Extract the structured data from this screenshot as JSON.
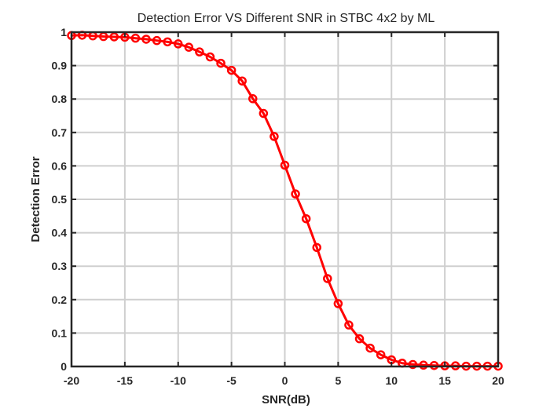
{
  "chart_data": {
    "type": "line",
    "title": "Detection Error VS Different SNR in STBC 4x2 by ML",
    "xlabel": "SNR(dB)",
    "ylabel": "Detection Error",
    "xlim": [
      -20,
      20
    ],
    "ylim": [
      0,
      1
    ],
    "xticks": [
      -20,
      -15,
      -10,
      -5,
      0,
      5,
      10,
      15,
      20
    ],
    "yticks": [
      0,
      0.1,
      0.2,
      0.3,
      0.4,
      0.5,
      0.6,
      0.7,
      0.8,
      0.9,
      1
    ],
    "xtick_labels": [
      "-20",
      "-15",
      "-10",
      "-5",
      "0",
      "5",
      "10",
      "15",
      "20"
    ],
    "ytick_labels": [
      "0",
      "0.1",
      "0.2",
      "0.3",
      "0.4",
      "0.5",
      "0.6",
      "0.7",
      "0.8",
      "0.9",
      "1"
    ],
    "grid": true,
    "series": [
      {
        "color": "#ff0000",
        "marker": "circle",
        "x": [
          -20,
          -19,
          -18,
          -17,
          -16,
          -15,
          -14,
          -13,
          -12,
          -11,
          -10,
          -9,
          -8,
          -7,
          -6,
          -5,
          -4,
          -3,
          -2,
          -1,
          0,
          1,
          2,
          3,
          4,
          5,
          6,
          7,
          8,
          9,
          10,
          11,
          12,
          13,
          14,
          15,
          16,
          17,
          18,
          19,
          20
        ],
        "values": [
          0.99,
          0.991,
          0.989,
          0.987,
          0.986,
          0.985,
          0.982,
          0.979,
          0.975,
          0.971,
          0.965,
          0.955,
          0.941,
          0.926,
          0.907,
          0.886,
          0.854,
          0.801,
          0.757,
          0.688,
          0.602,
          0.516,
          0.442,
          0.356,
          0.263,
          0.188,
          0.124,
          0.083,
          0.055,
          0.035,
          0.02,
          0.01,
          0.006,
          0.004,
          0.003,
          0.002,
          0.002,
          0.001,
          0.001,
          0.001,
          0.001
        ]
      }
    ]
  }
}
